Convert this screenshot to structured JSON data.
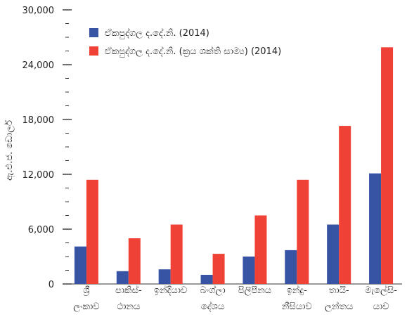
{
  "chart_data": {
    "type": "bar",
    "categories": [
      [
        "ශ්‍රී",
        "ලංකාව"
      ],
      [
        "පාකිස්-",
        "ථානය"
      ],
      [
        "ඉන්දියාව",
        ""
      ],
      [
        "බංග්ලා",
        "දේශය"
      ],
      [
        "පිලිපීනය",
        ""
      ],
      [
        "ඉන්දු-",
        "නීසියාව"
      ],
      [
        "තායි-",
        "ලන්තය"
      ],
      [
        "මැලේසි-",
        "යාව"
      ]
    ],
    "series": [
      {
        "name": "ඒකපුද්ගල ද.දේ.නි. (2014)",
        "color": "#3653a4",
        "values": [
          4100,
          1400,
          1600,
          1000,
          3000,
          3700,
          6500,
          12100
        ]
      },
      {
        "name": "ඒකපුද්ගල ද.දේ.නි. (ක්‍රය ශක්ති සාම්‍ය) (2014)",
        "color": "#ef4135",
        "values": [
          11400,
          5000,
          6500,
          3300,
          7500,
          11400,
          17300,
          25900
        ]
      }
    ],
    "ylabel": "ඇ.එ.ජ. ඩොලර්",
    "ylim": [
      0,
      30000
    ],
    "yticks": [
      {
        "value": 0,
        "label": "0"
      },
      {
        "value": 6000,
        "label": "6,000"
      },
      {
        "value": 12000,
        "label": "12,000"
      },
      {
        "value": 18000,
        "label": "18,000"
      },
      {
        "value": 24000,
        "label": "24,000"
      },
      {
        "value": 30000,
        "label": "30,000"
      }
    ],
    "minor_tick_step": 1500,
    "grid": false,
    "legend_position": "top-left"
  }
}
